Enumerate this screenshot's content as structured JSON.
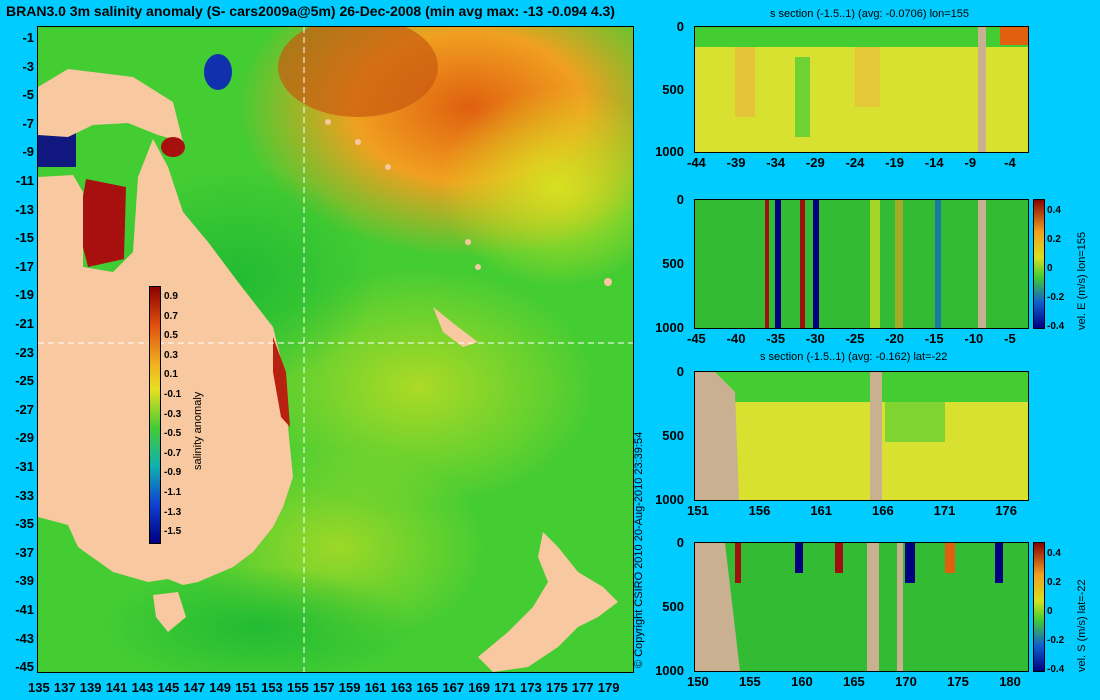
{
  "map": {
    "title": "BRAN3.0 3m salinity anomaly (S- cars2009a@5m) 26-Dec-2008 (min avg max: -13 -0.094 4.3)",
    "lat_ticks": [
      "-1",
      "-3",
      "-5",
      "-7",
      "-9",
      "-11",
      "-13",
      "-15",
      "-17",
      "-19",
      "-21",
      "-23",
      "-25",
      "-27",
      "-29",
      "-31",
      "-33",
      "-35",
      "-37",
      "-39",
      "-41",
      "-43",
      "-45"
    ],
    "lon_ticks": [
      "135",
      "137",
      "139",
      "141",
      "143",
      "145",
      "147",
      "149",
      "151",
      "153",
      "155",
      "157",
      "159",
      "161",
      "163",
      "165",
      "167",
      "169",
      "171",
      "173",
      "175",
      "177",
      "179"
    ],
    "colorbar": {
      "label": "salinity anomaly",
      "ticks": [
        "0.9",
        "0.7",
        "0.5",
        "0.3",
        "0.1",
        "-0.1",
        "-0.3",
        "-0.5",
        "-0.7",
        "-0.9",
        "-1.1",
        "-1.3",
        "-1.5"
      ]
    },
    "copyright": "© Copyright CSIRO 2010   20-Aug-2010 23:39:54",
    "colors": {
      "land": "#f8c8a0",
      "ocean_mid": "#33cc33",
      "ocean_high": "#d04000",
      "ocean_low": "#1020a0"
    }
  },
  "panels": [
    {
      "title": "s section (-1.5..1) (avg: -0.0706) lon=155",
      "y_ticks": [
        "0",
        "500",
        "1000"
      ],
      "x_ticks": [
        "-44",
        "-39",
        "-34",
        "-29",
        "-24",
        "-19",
        "-14",
        "-9",
        "-4"
      ],
      "colorbar": null
    },
    {
      "title": "",
      "y_ticks": [
        "0",
        "500",
        "1000"
      ],
      "x_ticks": [
        "-45",
        "-40",
        "-35",
        "-30",
        "-25",
        "-20",
        "-15",
        "-10",
        "-5"
      ],
      "colorbar": {
        "label": "vel. E (m/s) lon=155",
        "ticks": [
          "0.4",
          "0.2",
          "0",
          "-0.2",
          "-0.4"
        ]
      }
    },
    {
      "title": "s section (-1.5..1) (avg: -0.162) lat=-22",
      "y_ticks": [
        "0",
        "500",
        "1000"
      ],
      "x_ticks": [
        "151",
        "156",
        "161",
        "166",
        "171",
        "176"
      ],
      "colorbar": null
    },
    {
      "title": "",
      "y_ticks": [
        "0",
        "500",
        "1000"
      ],
      "x_ticks": [
        "150",
        "155",
        "160",
        "165",
        "170",
        "175",
        "180"
      ],
      "colorbar": {
        "label": "vel. S (m/s) lat=-22",
        "ticks": [
          "0.4",
          "0.2",
          "0",
          "-0.2",
          "-0.4"
        ]
      }
    }
  ]
}
